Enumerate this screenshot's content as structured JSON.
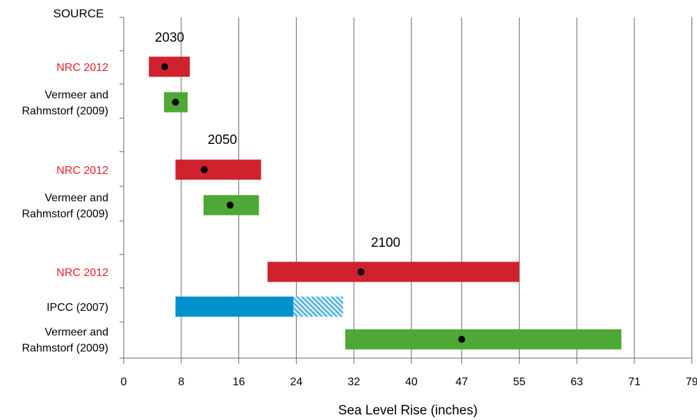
{
  "chart_data": {
    "type": "bar",
    "subtype": "horizontal-range",
    "source_header": "SOURCE",
    "xlabel": "Sea Level Rise (inches)",
    "ylabel": "",
    "x_ticks": [
      "0",
      "8",
      "16",
      "24",
      "32",
      "40",
      "47",
      "55",
      "63",
      "71",
      "79"
    ],
    "x_tick_values": [
      0,
      8,
      16,
      24,
      32,
      40,
      47,
      55,
      63,
      71,
      79
    ],
    "xlim": [
      0,
      79
    ],
    "grid": true,
    "colors": {
      "nrc": "#d0222e",
      "vermeer": "#4ea836",
      "ipcc": "#0090cc",
      "nrc_label": "#e8202a",
      "marker": "#000000",
      "grid": "#666666"
    },
    "groups": [
      {
        "year": "2030",
        "rows": [
          {
            "source": [
              "NRC 2012"
            ],
            "series": "nrc",
            "low": 3.5,
            "high": 9.2,
            "mid": 5.7
          },
          {
            "source": [
              "Vermeer and",
              "Rahmstorf (2009)"
            ],
            "series": "vermeer",
            "low": 5.6,
            "high": 8.9,
            "mid": 7.2
          }
        ]
      },
      {
        "year": "2050",
        "rows": [
          {
            "source": [
              "NRC 2012"
            ],
            "series": "nrc",
            "low": 7.2,
            "high": 19.1,
            "mid": 11.2
          },
          {
            "source": [
              "Vermeer and",
              "Rahmstorf (2009)"
            ],
            "series": "vermeer",
            "low": 11.1,
            "high": 18.8,
            "mid": 14.8
          }
        ]
      },
      {
        "year": "2100",
        "rows": [
          {
            "source": [
              "NRC 2012"
            ],
            "series": "nrc",
            "low": 20.0,
            "high": 55.0,
            "mid": 33.0
          },
          {
            "source": [
              "IPCC (2007)"
            ],
            "series": "ipcc",
            "low": 7.2,
            "high": 23.6,
            "hatched_high": 30.5,
            "mid": null
          },
          {
            "source": [
              "Vermeer and",
              "Rahmstorf (2009)"
            ],
            "series": "vermeer",
            "low": 30.8,
            "high": 69.2,
            "mid": 47.0
          }
        ]
      }
    ]
  }
}
